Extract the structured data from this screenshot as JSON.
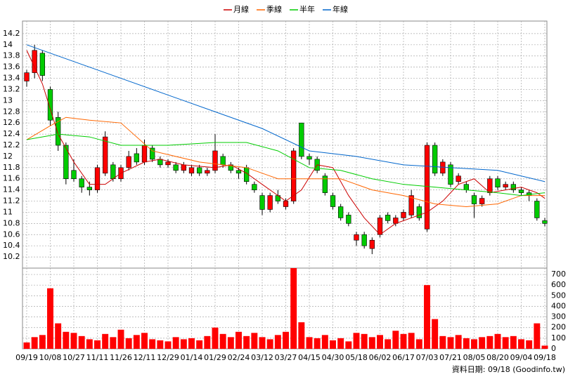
{
  "chart_data": {
    "type": "candlestick",
    "categories": [
      "09/19",
      null,
      null,
      "10/08",
      null,
      null,
      "10/27",
      null,
      null,
      "11/11",
      null,
      null,
      "11/26",
      null,
      null,
      "12/11",
      null,
      null,
      "12/29",
      null,
      null,
      "01/14",
      null,
      null,
      "01/29",
      null,
      null,
      "02/24",
      null,
      null,
      "03/12",
      null,
      null,
      "03/27",
      null,
      null,
      "04/15",
      null,
      null,
      "04/30",
      null,
      null,
      "05/18",
      null,
      null,
      "06/02",
      null,
      null,
      "06/17",
      null,
      null,
      "07/03",
      null,
      null,
      "07/21",
      null,
      null,
      "08/05",
      null,
      null,
      "08/20",
      null,
      null,
      "09/04",
      null,
      null,
      "09/18"
    ],
    "open": [
      13.35,
      13.5,
      13.85,
      13.2,
      12.7,
      12.2,
      11.75,
      11.6,
      11.45,
      11.4,
      11.7,
      11.85,
      11.6,
      11.8,
      12.05,
      11.9,
      12.15,
      11.95,
      11.85,
      11.85,
      11.75,
      11.7,
      11.8,
      11.7,
      11.75,
      12.0,
      11.85,
      11.75,
      11.8,
      11.5,
      11.3,
      11.05,
      11.3,
      11.1,
      11.2,
      12.6,
      12.0,
      11.95,
      11.65,
      11.3,
      11.1,
      10.95,
      10.5,
      10.6,
      10.35,
      10.6,
      10.95,
      10.8,
      10.9,
      10.95,
      11.1,
      10.7,
      12.2,
      11.7,
      11.85,
      11.55,
      11.5,
      11.3,
      11.15,
      11.35,
      11.6,
      11.45,
      11.5,
      11.4,
      11.35,
      11.2,
      10.85
    ],
    "high": [
      13.55,
      14.0,
      13.9,
      13.25,
      12.8,
      12.25,
      11.95,
      11.65,
      11.55,
      11.85,
      12.45,
      11.9,
      11.85,
      12.1,
      12.15,
      12.3,
      12.2,
      12.0,
      11.95,
      11.9,
      11.9,
      11.85,
      11.85,
      11.8,
      12.4,
      12.05,
      11.9,
      11.8,
      11.85,
      11.55,
      11.35,
      11.35,
      11.4,
      11.25,
      12.15,
      12.6,
      12.05,
      12.0,
      11.7,
      11.35,
      11.15,
      11.0,
      10.65,
      10.65,
      10.55,
      10.95,
      11.0,
      10.95,
      11.05,
      11.4,
      11.15,
      12.25,
      12.25,
      11.95,
      11.9,
      11.7,
      11.55,
      11.35,
      11.3,
      11.65,
      11.65,
      11.55,
      11.55,
      11.45,
      11.4,
      11.25,
      10.9
    ],
    "low": [
      13.25,
      13.4,
      13.35,
      12.55,
      12.1,
      11.5,
      11.55,
      11.35,
      11.3,
      11.35,
      11.65,
      11.55,
      11.55,
      11.75,
      11.85,
      11.85,
      11.9,
      11.8,
      11.8,
      11.7,
      11.7,
      11.65,
      11.65,
      11.65,
      11.7,
      11.8,
      11.7,
      11.6,
      11.5,
      11.35,
      10.95,
      11.0,
      11.15,
      11.05,
      11.15,
      11.95,
      11.85,
      11.7,
      11.3,
      11.05,
      10.85,
      10.75,
      10.4,
      10.35,
      10.25,
      10.55,
      10.8,
      10.75,
      10.85,
      10.9,
      10.85,
      10.65,
      11.65,
      11.65,
      11.45,
      11.5,
      11.35,
      10.9,
      11.1,
      11.3,
      11.4,
      11.4,
      11.35,
      11.3,
      11.2,
      10.85,
      10.75
    ],
    "close": [
      13.5,
      13.9,
      13.45,
      12.65,
      12.2,
      11.6,
      11.6,
      11.45,
      11.4,
      11.8,
      12.35,
      11.6,
      11.8,
      12.0,
      11.9,
      12.2,
      11.95,
      11.85,
      11.9,
      11.75,
      11.85,
      11.8,
      11.7,
      11.75,
      12.1,
      11.85,
      11.75,
      11.7,
      11.55,
      11.4,
      11.05,
      11.3,
      11.2,
      11.2,
      12.1,
      12.0,
      11.95,
      11.75,
      11.35,
      11.1,
      10.9,
      10.8,
      10.6,
      10.4,
      10.5,
      10.9,
      10.85,
      10.9,
      11.0,
      11.3,
      10.9,
      12.2,
      11.7,
      11.9,
      11.5,
      11.65,
      11.4,
      11.15,
      11.25,
      11.6,
      11.45,
      11.5,
      11.4,
      11.35,
      11.3,
      10.9,
      10.8
    ],
    "up_color": "#ff0000",
    "down_color": "#00cc00",
    "ylim": [
      10.0,
      14.4
    ],
    "yticks": [
      10.2,
      10.4,
      10.6,
      10.8,
      11,
      11.2,
      11.4,
      11.6,
      11.8,
      12,
      12.2,
      12.4,
      12.6,
      12.8,
      13,
      13.2,
      13.4,
      13.6,
      13.8,
      14,
      14.2
    ],
    "grid": true,
    "series": [
      {
        "name": "月線",
        "color": "#cc0000",
        "x": [
          0,
          2,
          4,
          6,
          8,
          10,
          12,
          15,
          17,
          20,
          24,
          26,
          28,
          31,
          33,
          35,
          37,
          39,
          41,
          43,
          45,
          47,
          49,
          51,
          53,
          55,
          57,
          59,
          61,
          63,
          65,
          66
        ],
        "values": [
          13.9,
          13.3,
          12.4,
          11.9,
          11.5,
          11.5,
          11.7,
          11.9,
          11.95,
          11.85,
          11.8,
          11.85,
          11.7,
          11.4,
          11.2,
          11.4,
          11.85,
          11.8,
          11.3,
          10.9,
          10.6,
          10.8,
          10.9,
          11.0,
          11.2,
          11.5,
          11.6,
          11.35,
          11.4,
          11.45,
          11.35,
          11.25
        ]
      },
      {
        "name": "季線",
        "color": "#ff6600",
        "x": [
          0,
          3,
          5,
          8,
          12,
          16,
          22,
          28,
          32,
          36,
          40,
          44,
          48,
          52,
          56,
          60,
          63,
          66
        ],
        "values": [
          12.3,
          12.55,
          12.7,
          12.65,
          12.6,
          12.1,
          11.9,
          11.8,
          11.6,
          11.6,
          11.6,
          11.4,
          11.3,
          11.15,
          11.1,
          11.15,
          11.3,
          11.3
        ]
      },
      {
        "name": "半年",
        "color": "#00cc00",
        "x": [
          0,
          4,
          8,
          12,
          18,
          24,
          28,
          32,
          36,
          40,
          44,
          48,
          52,
          56,
          60,
          63,
          66
        ],
        "values": [
          12.3,
          12.4,
          12.35,
          12.2,
          12.2,
          12.25,
          12.25,
          12.1,
          11.8,
          11.75,
          11.6,
          11.5,
          11.45,
          11.4,
          11.35,
          11.3,
          11.35
        ]
      },
      {
        "name": "年線",
        "color": "#0066cc",
        "x": [
          0,
          6,
          12,
          18,
          24,
          30,
          36,
          42,
          48,
          54,
          60,
          66
        ],
        "values": [
          14.0,
          13.7,
          13.4,
          13.1,
          12.8,
          12.5,
          12.1,
          12.0,
          11.85,
          11.8,
          11.75,
          11.55
        ]
      }
    ],
    "volume": {
      "color": "#ff0000",
      "ylim": [
        0,
        760
      ],
      "yticks": [
        0,
        100,
        200,
        300,
        400,
        500,
        600,
        700
      ],
      "values": [
        60,
        110,
        130,
        570,
        240,
        160,
        150,
        120,
        90,
        80,
        140,
        110,
        180,
        100,
        130,
        150,
        90,
        80,
        70,
        110,
        90,
        100,
        80,
        120,
        200,
        140,
        110,
        160,
        120,
        150,
        110,
        90,
        130,
        160,
        760,
        250,
        110,
        100,
        130,
        80,
        100,
        70,
        150,
        140,
        110,
        130,
        90,
        170,
        140,
        150,
        90,
        600,
        280,
        120,
        110,
        130,
        100,
        90,
        110,
        120,
        140,
        110,
        120,
        90,
        80,
        240,
        30
      ]
    },
    "footnote": "資料日期: 09/18  (Goodinfo.tw)"
  }
}
